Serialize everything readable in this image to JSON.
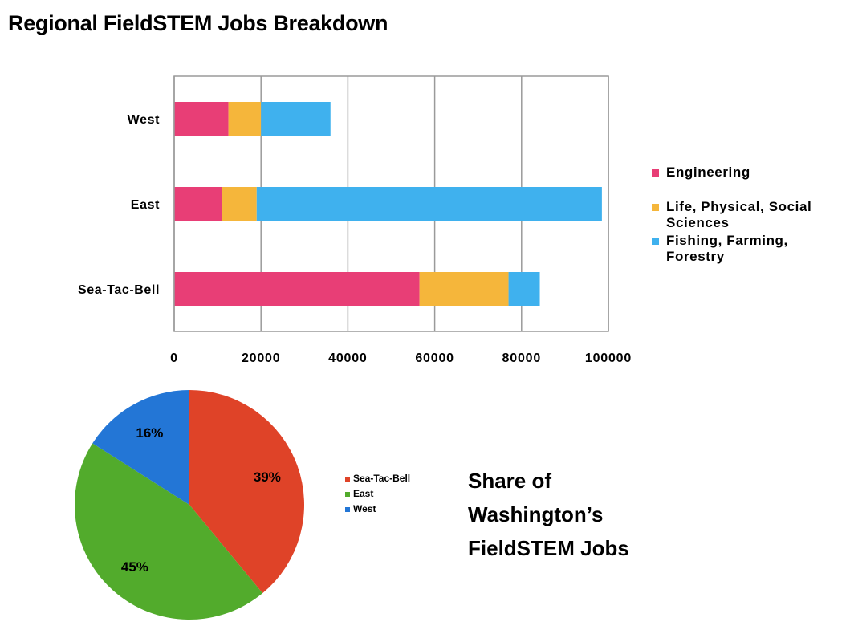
{
  "title": "Regional FieldSTEM Jobs Breakdown",
  "colors": {
    "engineering": "#e83e76",
    "life_physical_social": "#f5b63b",
    "fishing_farming_forestry": "#3fb1ee",
    "sea_tac_bell": "#df4328",
    "east": "#52ab2c",
    "west": "#2376d6"
  },
  "chart_data": [
    {
      "type": "bar",
      "orientation": "horizontal",
      "stacked": true,
      "categories": [
        "West",
        "East",
        "Sea-Tac-Bell"
      ],
      "series": [
        {
          "name": "Engineering",
          "values": [
            12500,
            11000,
            56500
          ],
          "color": "#e83e76"
        },
        {
          "name": "Life, Physical, Social Sciences",
          "values": [
            7500,
            8000,
            20500
          ],
          "color": "#f5b63b"
        },
        {
          "name": "Fishing, Farming, Forestry",
          "values": [
            16000,
            79500,
            7200
          ],
          "color": "#3fb1ee"
        }
      ],
      "xlim": [
        0,
        100000
      ],
      "xticks": [
        "0",
        "20000",
        "40000",
        "60000",
        "80000",
        "100000"
      ],
      "grid": true,
      "legend_position": "right"
    },
    {
      "type": "pie",
      "title_lines": [
        "Share of",
        "Washington’s",
        "FieldSTEM Jobs"
      ],
      "labels": [
        "Sea-Tac-Bell",
        "East",
        "West"
      ],
      "values": [
        39,
        45,
        16
      ],
      "value_labels": [
        "39%",
        "45%",
        "16%"
      ],
      "colors": [
        "#df4328",
        "#52ab2c",
        "#2376d6"
      ],
      "legend_position": "right"
    }
  ]
}
